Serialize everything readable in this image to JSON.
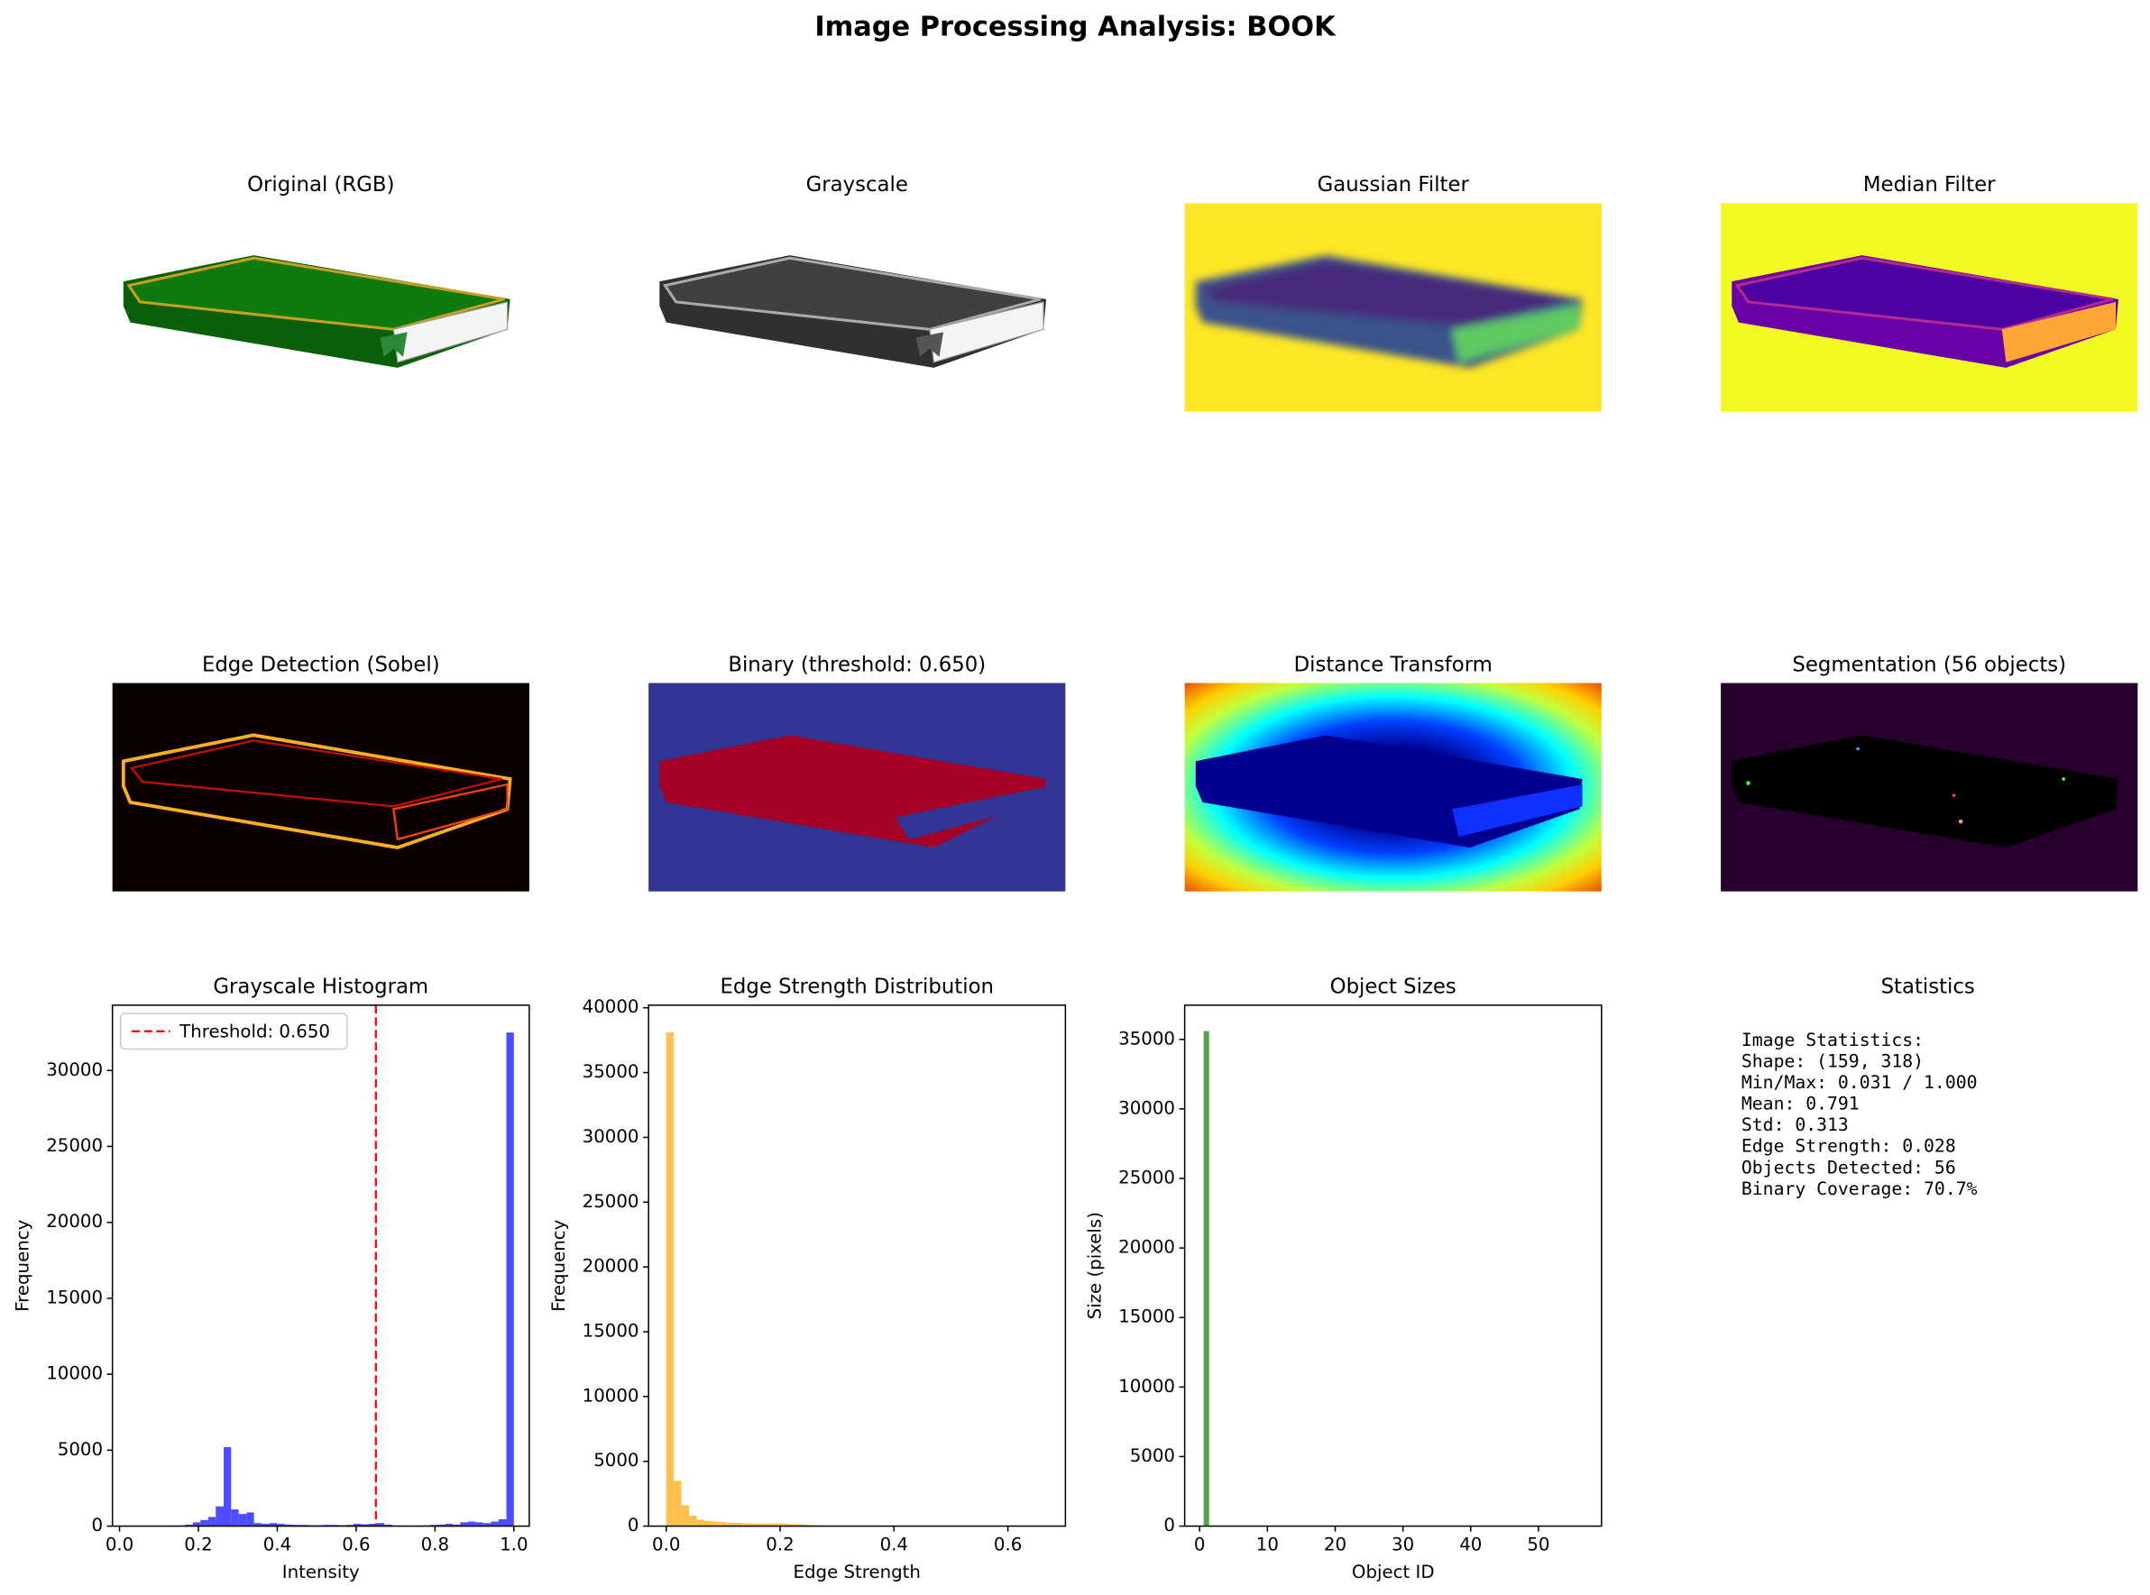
{
  "title": "Image Processing Analysis: BOOK",
  "images": [
    {
      "title": "Original (RGB)"
    },
    {
      "title": "Grayscale"
    },
    {
      "title": "Gaussian Filter"
    },
    {
      "title": "Median Filter"
    },
    {
      "title": "Edge Detection (Sobel)"
    },
    {
      "title": "Binary (threshold: 0.650)"
    },
    {
      "title": "Distance Transform"
    },
    {
      "title": "Segmentation (56 objects)"
    }
  ],
  "chart_data": [
    {
      "type": "histogram",
      "title": "Grayscale Histogram",
      "x_label": "Intensity",
      "y_label": "Frequency",
      "color": "#4d4dff",
      "bins": [
        0.031,
        0.05,
        0.07,
        0.089,
        0.109,
        0.128,
        0.147,
        0.167,
        0.186,
        0.205,
        0.225,
        0.244,
        0.264,
        0.283,
        0.302,
        0.322,
        0.341,
        0.36,
        0.38,
        0.399,
        0.419,
        0.438,
        0.457,
        0.477,
        0.496,
        0.516,
        0.535,
        0.554,
        0.574,
        0.593,
        0.612,
        0.632,
        0.651,
        0.671,
        0.69,
        0.709,
        0.729,
        0.748,
        0.767,
        0.787,
        0.806,
        0.826,
        0.845,
        0.864,
        0.884,
        0.903,
        0.922,
        0.942,
        0.961,
        0.981,
        1.0
      ],
      "values": [
        0,
        0,
        0,
        0,
        0,
        0,
        50,
        100,
        250,
        400,
        600,
        1300,
        5200,
        1100,
        800,
        900,
        200,
        150,
        200,
        150,
        100,
        80,
        80,
        60,
        60,
        80,
        80,
        60,
        80,
        150,
        120,
        150,
        200,
        100,
        50,
        20,
        20,
        30,
        50,
        80,
        100,
        150,
        100,
        250,
        300,
        250,
        200,
        300,
        450,
        32500
      ],
      "xlim": [
        -0.018,
        1.039
      ],
      "ylim": [
        0,
        34300
      ],
      "xticks": [
        {
          "value": 0,
          "label": "0.0"
        },
        {
          "value": 0.2,
          "label": "0.2"
        },
        {
          "value": 0.4,
          "label": "0.4"
        },
        {
          "value": 0.6,
          "label": "0.6"
        },
        {
          "value": 0.8,
          "label": "0.8"
        },
        {
          "value": 1,
          "label": "1.0"
        }
      ],
      "yticks": [
        0,
        5000,
        10000,
        15000,
        20000,
        25000,
        30000
      ],
      "threshold": 0.65,
      "threshold_label": "Threshold: 0.650",
      "threshold_color": "#ff0000",
      "legend": "upper left"
    },
    {
      "type": "histogram",
      "title": "Edge Strength Distribution",
      "x_label": "Edge Strength",
      "y_label": "Frequency",
      "color": "#ffc04d",
      "bins": [
        0,
        0.0134,
        0.0268,
        0.0402,
        0.0536,
        0.067,
        0.0804,
        0.0938,
        0.1072,
        0.1206,
        0.134,
        0.1474,
        0.1608,
        0.1742,
        0.1876,
        0.201,
        0.2144,
        0.2278,
        0.2412,
        0.2546,
        0.268,
        0.2814,
        0.2948,
        0.3082,
        0.3216,
        0.335,
        0.3484,
        0.3618,
        0.3752,
        0.3886,
        0.402,
        0.4154,
        0.4288,
        0.4422,
        0.4556,
        0.469,
        0.4824,
        0.4958,
        0.5092,
        0.5226,
        0.536,
        0.5494,
        0.5628,
        0.5762,
        0.5896,
        0.603,
        0.6164,
        0.6298,
        0.6432,
        0.6566,
        0.67
      ],
      "values": [
        38100,
        3500,
        1600,
        800,
        500,
        400,
        350,
        300,
        250,
        250,
        200,
        200,
        200,
        200,
        200,
        200,
        150,
        150,
        100,
        80,
        50,
        40,
        30,
        20,
        20,
        15,
        10,
        10,
        8,
        5,
        5,
        4,
        3,
        3,
        2,
        2,
        2,
        1,
        1,
        1,
        1,
        1,
        0,
        0,
        0,
        0,
        0,
        0,
        0,
        1
      ],
      "xlim": [
        -0.031,
        0.701
      ],
      "ylim": [
        0,
        40200
      ],
      "xticks": [
        {
          "value": 0,
          "label": "0.0"
        },
        {
          "value": 0.2,
          "label": "0.2"
        },
        {
          "value": 0.4,
          "label": "0.4"
        },
        {
          "value": 0.6,
          "label": "0.6"
        }
      ],
      "yticks": [
        0,
        5000,
        10000,
        15000,
        20000,
        25000,
        30000,
        35000,
        40000
      ]
    },
    {
      "type": "bar",
      "title": "Object Sizes",
      "x_label": "Object ID",
      "y_label": "Size (pixels)",
      "color": "#4da64d",
      "x": [
        1,
        2,
        3,
        4,
        5,
        6,
        7,
        8,
        9,
        10,
        11,
        12,
        13,
        14,
        15,
        16,
        17,
        18,
        19,
        20,
        21,
        22,
        23,
        24,
        25,
        26,
        27,
        28,
        29,
        30,
        31,
        32,
        33,
        34,
        35,
        36,
        37,
        38,
        39,
        40,
        41,
        42,
        43,
        44,
        45,
        46,
        47,
        48,
        49,
        50,
        51,
        52,
        53,
        54,
        55,
        56
      ],
      "values": [
        35600,
        12,
        5,
        30,
        8,
        15,
        22,
        6,
        9,
        40,
        18,
        7,
        11,
        25,
        5,
        14,
        33,
        9,
        6,
        19,
        28,
        10,
        7,
        13,
        45,
        8,
        16,
        21,
        5,
        12,
        9,
        27,
        14,
        6,
        18,
        11,
        35,
        8,
        10,
        24,
        7,
        15,
        9,
        30,
        12,
        6,
        20,
        13,
        8,
        17,
        26,
        10,
        5,
        14,
        22,
        9
      ],
      "xlim": [
        -2.2,
        59.3
      ],
      "ylim": [
        0,
        37460
      ],
      "xticks": [
        0,
        10,
        20,
        30,
        40,
        50
      ],
      "yticks": [
        0,
        5000,
        10000,
        15000,
        20000,
        25000,
        30000,
        35000
      ]
    }
  ],
  "statistics": {
    "title": "Statistics",
    "lines": [
      "Image Statistics:",
      "Shape: (159, 318)",
      "Min/Max: 0.031 / 1.000",
      "Mean: 0.791",
      "Std: 0.313",
      "Edge Strength: 0.028",
      "Objects Detected: 56",
      "Binary Coverage: 70.7%"
    ]
  }
}
